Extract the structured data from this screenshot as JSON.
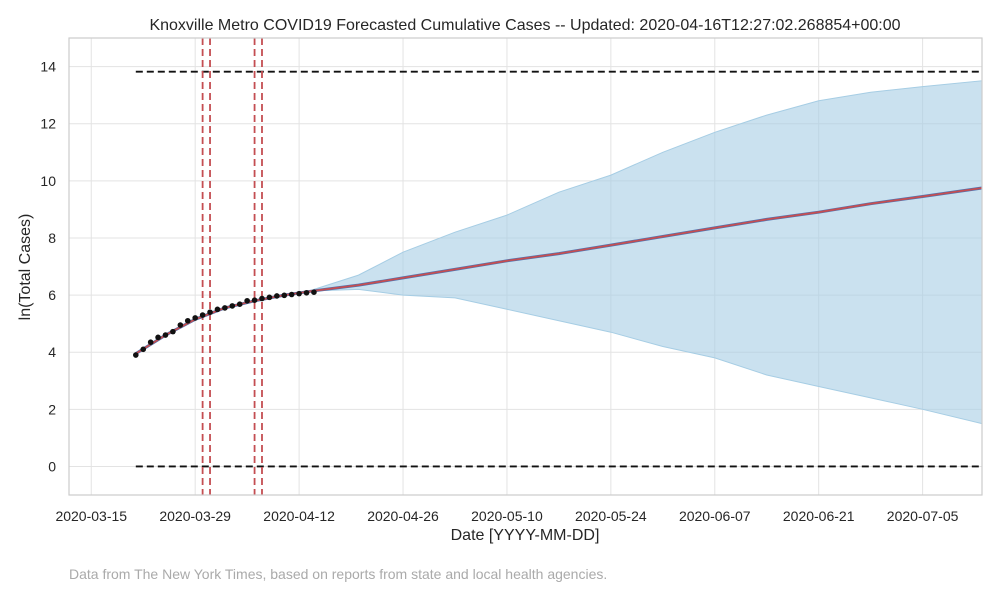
{
  "chart_data": {
    "type": "line",
    "title": "Knoxville Metro COVID19 Forecasted Cumulative Cases -- Updated: 2020-04-16T12:27:02.268854+00:00",
    "xlabel": "Date [YYYY-MM-DD]",
    "ylabel": "ln(Total Cases)",
    "xlim": [
      "2020-03-12",
      "2020-07-13"
    ],
    "ylim": [
      -1,
      15
    ],
    "x_ticks": [
      "2020-03-15",
      "2020-03-29",
      "2020-04-12",
      "2020-04-26",
      "2020-05-10",
      "2020-05-24",
      "2020-06-07",
      "2020-06-21",
      "2020-07-05"
    ],
    "y_ticks": [
      0,
      2,
      4,
      6,
      8,
      10,
      12,
      14
    ],
    "grid": true,
    "observed": {
      "x": [
        "2020-03-21",
        "2020-03-22",
        "2020-03-23",
        "2020-03-24",
        "2020-03-25",
        "2020-03-26",
        "2020-03-27",
        "2020-03-28",
        "2020-03-29",
        "2020-03-30",
        "2020-03-31",
        "2020-04-01",
        "2020-04-02",
        "2020-04-03",
        "2020-04-04",
        "2020-04-05",
        "2020-04-06",
        "2020-04-07",
        "2020-04-08",
        "2020-04-09",
        "2020-04-10",
        "2020-04-11",
        "2020-04-12",
        "2020-04-13",
        "2020-04-14"
      ],
      "y": [
        3.9,
        4.1,
        4.35,
        4.52,
        4.6,
        4.72,
        4.95,
        5.1,
        5.2,
        5.3,
        5.4,
        5.5,
        5.55,
        5.62,
        5.68,
        5.8,
        5.82,
        5.88,
        5.92,
        5.97,
        5.99,
        6.02,
        6.05,
        6.08,
        6.1
      ]
    },
    "forecast_mean": {
      "x": [
        "2020-03-21",
        "2020-03-25",
        "2020-03-29",
        "2020-04-02",
        "2020-04-06",
        "2020-04-10",
        "2020-04-14",
        "2020-04-20",
        "2020-04-26",
        "2020-05-03",
        "2020-05-10",
        "2020-05-17",
        "2020-05-24",
        "2020-05-31",
        "2020-06-07",
        "2020-06-14",
        "2020-06-21",
        "2020-06-28",
        "2020-07-05",
        "2020-07-13"
      ],
      "y": [
        3.95,
        4.6,
        5.15,
        5.55,
        5.8,
        6.0,
        6.15,
        6.35,
        6.6,
        6.9,
        7.2,
        7.45,
        7.75,
        8.05,
        8.35,
        8.65,
        8.9,
        9.2,
        9.45,
        9.75
      ]
    },
    "fit_line": {
      "x": [
        "2020-03-21",
        "2020-03-25",
        "2020-03-29",
        "2020-04-02",
        "2020-04-06",
        "2020-04-10",
        "2020-04-14",
        "2020-04-20",
        "2020-04-26",
        "2020-05-03",
        "2020-05-10",
        "2020-05-17",
        "2020-05-24",
        "2020-05-31",
        "2020-06-07",
        "2020-06-14",
        "2020-06-21",
        "2020-06-28",
        "2020-07-05",
        "2020-07-13"
      ],
      "y": [
        3.95,
        4.6,
        5.15,
        5.55,
        5.8,
        6.0,
        6.15,
        6.35,
        6.6,
        6.9,
        7.2,
        7.45,
        7.75,
        8.05,
        8.35,
        8.65,
        8.9,
        9.2,
        9.45,
        9.75
      ]
    },
    "confidence_band": {
      "x": [
        "2020-04-14",
        "2020-04-20",
        "2020-04-26",
        "2020-05-03",
        "2020-05-10",
        "2020-05-17",
        "2020-05-24",
        "2020-05-31",
        "2020-06-07",
        "2020-06-14",
        "2020-06-21",
        "2020-06-28",
        "2020-07-05",
        "2020-07-13"
      ],
      "upper": [
        6.2,
        6.7,
        7.5,
        8.2,
        8.8,
        9.6,
        10.2,
        11.0,
        11.7,
        12.3,
        12.8,
        13.1,
        13.3,
        13.5
      ],
      "lower": [
        6.15,
        6.2,
        6.0,
        5.9,
        5.5,
        5.1,
        4.7,
        4.2,
        3.8,
        3.2,
        2.8,
        2.4,
        2.0,
        1.5
      ]
    },
    "horizontal_lines": [
      {
        "y": 13.82,
        "x_start": "2020-03-21",
        "x_end": "2020-07-13",
        "style": "dashed",
        "color": "#111111"
      },
      {
        "y": 0,
        "x_start": "2020-03-21",
        "x_end": "2020-07-13",
        "style": "dashed",
        "color": "#111111"
      }
    ],
    "vertical_lines": [
      {
        "x": "2020-03-30",
        "style": "dashed",
        "color": "#c44e52"
      },
      {
        "x": "2020-03-31",
        "style": "dashed",
        "color": "#c44e52"
      },
      {
        "x": "2020-04-06",
        "style": "dashed",
        "color": "#c44e52"
      },
      {
        "x": "2020-04-07",
        "style": "dashed",
        "color": "#c44e52"
      }
    ],
    "colors": {
      "band": "#a6cde4",
      "mean": "#4c72b0",
      "fit": "#c44e52",
      "observed": "#111111",
      "grid": "#e3e3e3",
      "frame": "#cccccc"
    }
  },
  "footer": "Data from The New York Times, based on reports from state and local health agencies."
}
